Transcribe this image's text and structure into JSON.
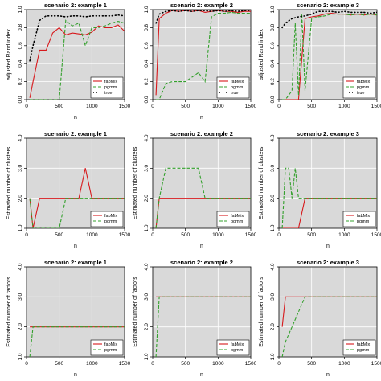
{
  "chart_data": [
    {
      "type": "line",
      "title": "scenario 2: example 1",
      "xlabel": "n",
      "ylabel": "adjusted Rand index",
      "xlim": [
        0,
        1500
      ],
      "ylim": [
        0,
        1
      ],
      "xticks": [
        "0",
        "500",
        "1000",
        "1500"
      ],
      "yticks": [
        "0.0",
        "0.2",
        "0.4",
        "0.6",
        "0.8",
        "1.0"
      ],
      "legend_position": "bottom-right",
      "grid": true,
      "background": "#d9d9d9",
      "series": [
        {
          "name": "fabMix",
          "color": "#d7191c",
          "dash": "solid",
          "x": [
            50,
            100,
            200,
            300,
            400,
            500,
            600,
            700,
            800,
            900,
            1000,
            1100,
            1200,
            1300,
            1400,
            1500
          ],
          "y": [
            0.02,
            0.2,
            0.55,
            0.55,
            0.74,
            0.8,
            0.72,
            0.74,
            0.73,
            0.72,
            0.75,
            0.82,
            0.8,
            0.8,
            0.83,
            0.76
          ]
        },
        {
          "name": "pgmm",
          "color": "#33a02c",
          "dash": "dashed",
          "x": [
            50,
            100,
            200,
            300,
            400,
            500,
            600,
            700,
            800,
            900,
            1000,
            1100,
            1200,
            1300,
            1400,
            1500
          ],
          "y": [
            0,
            0,
            0,
            0,
            0,
            0,
            0.88,
            0.82,
            0.85,
            0.6,
            0.8,
            0.8,
            0.82,
            0.85,
            0.87,
            0.85
          ]
        },
        {
          "name": "true",
          "color": "#000000",
          "dash": "dotted",
          "x": [
            50,
            100,
            200,
            300,
            400,
            500,
            600,
            700,
            800,
            900,
            1000,
            1100,
            1200,
            1300,
            1400,
            1500
          ],
          "y": [
            0.43,
            0.6,
            0.88,
            0.93,
            0.93,
            0.93,
            0.92,
            0.93,
            0.93,
            0.92,
            0.93,
            0.93,
            0.93,
            0.93,
            0.94,
            0.93
          ]
        }
      ]
    },
    {
      "type": "line",
      "title": "scenario 2: example 2",
      "xlabel": "n",
      "ylabel": "",
      "xlim": [
        0,
        1500
      ],
      "ylim": [
        0,
        1
      ],
      "xticks": [
        "0",
        "500",
        "1000",
        "1500"
      ],
      "yticks": [
        "0.0",
        "0.2",
        "0.4",
        "0.6",
        "0.8",
        "1.0"
      ],
      "legend_position": "bottom-right",
      "grid": true,
      "background": "#d9d9d9",
      "series": [
        {
          "name": "fabMix",
          "color": "#d7191c",
          "dash": "solid",
          "x": [
            50,
            100,
            200,
            300,
            400,
            500,
            600,
            700,
            800,
            900,
            1000,
            1100,
            1200,
            1300,
            1400,
            1500
          ],
          "y": [
            0.05,
            0.9,
            0.96,
            0.99,
            0.98,
            0.99,
            0.98,
            0.99,
            0.97,
            0.98,
            0.99,
            0.98,
            0.98,
            0.97,
            0.98,
            0.98
          ]
        },
        {
          "name": "pgmm",
          "color": "#33a02c",
          "dash": "dashed",
          "x": [
            50,
            100,
            200,
            300,
            400,
            500,
            600,
            700,
            800,
            900,
            1000,
            1100,
            1200,
            1300,
            1400,
            1500
          ],
          "y": [
            0,
            0,
            0.18,
            0.2,
            0.2,
            0.2,
            0.25,
            0.3,
            0.2,
            0.92,
            0.96,
            0.96,
            0.97,
            0.96,
            0.96,
            0.96
          ]
        },
        {
          "name": "true",
          "color": "#000000",
          "dash": "dotted",
          "x": [
            50,
            100,
            200,
            300,
            400,
            500,
            600,
            700,
            800,
            900,
            1000,
            1100,
            1200,
            1300,
            1400,
            1500
          ],
          "y": [
            0.85,
            0.95,
            0.98,
            0.99,
            0.98,
            0.99,
            0.98,
            0.99,
            0.99,
            0.98,
            0.99,
            0.98,
            0.99,
            0.98,
            0.99,
            0.99
          ]
        }
      ]
    },
    {
      "type": "line",
      "title": "scenario 2: example 3",
      "xlabel": "",
      "ylabel": "adjusted Rand index",
      "xlim": [
        0,
        1500
      ],
      "ylim": [
        0,
        1
      ],
      "xticks": [
        "0",
        "500",
        "1000",
        "1500"
      ],
      "yticks": [
        "0.0",
        "0.2",
        "0.4",
        "0.6",
        "0.8",
        "1.0"
      ],
      "legend_position": "bottom-right",
      "grid": true,
      "background": "#d9d9d9",
      "series": [
        {
          "name": "fabMix",
          "color": "#d7191c",
          "dash": "solid",
          "x": [
            50,
            100,
            200,
            300,
            400,
            500,
            600,
            700,
            800,
            900,
            1000,
            1100,
            1200,
            1300,
            1400,
            1500
          ],
          "y": [
            0,
            0,
            0,
            0,
            0.9,
            0.92,
            0.93,
            0.95,
            0.96,
            0.95,
            0.95,
            0.94,
            0.95,
            0.94,
            0.95,
            0.94
          ]
        },
        {
          "name": "pgmm",
          "color": "#33a02c",
          "dash": "dashed",
          "x": [
            50,
            100,
            200,
            250,
            300,
            350,
            400,
            500,
            600,
            700,
            800,
            900,
            1000,
            1100,
            1200,
            1300,
            1400,
            1500
          ],
          "y": [
            0,
            0,
            0.1,
            0.85,
            0.05,
            0.95,
            0.1,
            0.9,
            0.92,
            0.93,
            0.95,
            0.95,
            0.95,
            0.94,
            0.95,
            0.94,
            0.95,
            0.94
          ]
        },
        {
          "name": "true",
          "color": "#000000",
          "dash": "dotted",
          "x": [
            50,
            100,
            200,
            300,
            400,
            500,
            600,
            700,
            800,
            900,
            1000,
            1100,
            1200,
            1300,
            1400,
            1500
          ],
          "y": [
            0.8,
            0.85,
            0.9,
            0.92,
            0.93,
            0.95,
            0.98,
            0.98,
            0.98,
            0.97,
            0.98,
            0.97,
            0.97,
            0.97,
            0.96,
            0.97
          ]
        }
      ]
    },
    {
      "type": "line",
      "title": "scenario 2: example 1",
      "xlabel": "n",
      "ylabel": "Estimated number of clusters",
      "xlim": [
        0,
        1500
      ],
      "ylim": [
        1,
        4
      ],
      "xticks": [
        "0",
        "500",
        "1000",
        "1500"
      ],
      "yticks": [
        "1.0",
        "2.0",
        "3.0",
        "4.0"
      ],
      "legend_position": "bottom-right",
      "grid": true,
      "background": "#d9d9d9",
      "series": [
        {
          "name": "fabMix",
          "color": "#d7191c",
          "dash": "solid",
          "x": [
            50,
            100,
            200,
            300,
            400,
            500,
            600,
            700,
            800,
            900,
            1000,
            1100,
            1200,
            1300,
            1400,
            1500
          ],
          "y": [
            2,
            1,
            2,
            2,
            2,
            2,
            2,
            2,
            2,
            3,
            2,
            2,
            2,
            2,
            2,
            2
          ]
        },
        {
          "name": "pgmm",
          "color": "#33a02c",
          "dash": "dashed",
          "x": [
            50,
            100,
            200,
            300,
            400,
            500,
            600,
            700,
            800,
            900,
            1000,
            1100,
            1200,
            1300,
            1400,
            1500
          ],
          "y": [
            2,
            1,
            1,
            1,
            1,
            1,
            2,
            2,
            2,
            2,
            2,
            2,
            2,
            2,
            2,
            2
          ]
        }
      ]
    },
    {
      "type": "line",
      "title": "scenario 2: example 2",
      "xlabel": "n",
      "ylabel": "Estimated number of clusters",
      "xlim": [
        0,
        1500
      ],
      "ylim": [
        1,
        4
      ],
      "xticks": [
        "0",
        "500",
        "1000",
        "1500"
      ],
      "yticks": [
        "1.0",
        "2.0",
        "3.0",
        "4.0"
      ],
      "legend_position": "bottom-right",
      "grid": true,
      "background": "#d9d9d9",
      "series": [
        {
          "name": "fabMix",
          "color": "#d7191c",
          "dash": "solid",
          "x": [
            50,
            100,
            200,
            300,
            400,
            500,
            600,
            700,
            800,
            900,
            1000,
            1100,
            1200,
            1300,
            1400,
            1500
          ],
          "y": [
            1,
            2,
            2,
            2,
            2,
            2,
            2,
            2,
            2,
            2,
            2,
            2,
            2,
            2,
            2,
            2
          ]
        },
        {
          "name": "pgmm",
          "color": "#33a02c",
          "dash": "dashed",
          "x": [
            50,
            100,
            200,
            300,
            400,
            500,
            600,
            700,
            800,
            900,
            1000,
            1100,
            1200,
            1300,
            1400,
            1500
          ],
          "y": [
            1,
            2,
            3,
            3,
            3,
            3,
            3,
            3,
            2,
            2,
            2,
            2,
            2,
            2,
            2,
            2
          ]
        }
      ]
    },
    {
      "type": "line",
      "title": "scenario 2: example 3",
      "xlabel": "n",
      "ylabel": "Estimated number of clusters",
      "xlim": [
        0,
        1500
      ],
      "ylim": [
        1,
        4
      ],
      "xticks": [
        "0",
        "500",
        "1000",
        "1500"
      ],
      "yticks": [
        "1.0",
        "2.0",
        "3.0",
        "4.0"
      ],
      "legend_position": "bottom-right",
      "grid": true,
      "background": "#d9d9d9",
      "series": [
        {
          "name": "fabMix",
          "color": "#d7191c",
          "dash": "solid",
          "x": [
            50,
            100,
            200,
            300,
            400,
            500,
            600,
            700,
            800,
            900,
            1000,
            1100,
            1200,
            1300,
            1400,
            1500
          ],
          "y": [
            1,
            1,
            1,
            1,
            2,
            2,
            2,
            2,
            2,
            2,
            2,
            2,
            2,
            2,
            2,
            2
          ]
        },
        {
          "name": "pgmm",
          "color": "#33a02c",
          "dash": "dashed",
          "x": [
            50,
            100,
            150,
            200,
            250,
            300,
            350,
            400,
            500,
            600,
            700,
            800,
            900,
            1000,
            1100,
            1200,
            1300,
            1400,
            1500
          ],
          "y": [
            1,
            3,
            3,
            2,
            3,
            2,
            2,
            2,
            2,
            2,
            2,
            2,
            2,
            2,
            2,
            2,
            2,
            2,
            2
          ]
        }
      ]
    },
    {
      "type": "line",
      "title": "scenario 2: example 1",
      "xlabel": "n",
      "ylabel": "Estimated number of factors",
      "xlim": [
        0,
        1500
      ],
      "ylim": [
        1,
        4
      ],
      "xticks": [
        "0",
        "500",
        "1000",
        "1500"
      ],
      "yticks": [
        "1.0",
        "2.0",
        "3.0",
        "4.0"
      ],
      "legend_position": "bottom-right",
      "grid": true,
      "background": "#d9d9d9",
      "series": [
        {
          "name": "fabMix",
          "color": "#d7191c",
          "dash": "solid",
          "x": [
            50,
            100,
            200,
            300,
            400,
            500,
            600,
            700,
            800,
            900,
            1000,
            1100,
            1200,
            1300,
            1400,
            1500
          ],
          "y": [
            2,
            2,
            2,
            2,
            2,
            2,
            2,
            2,
            2,
            2,
            2,
            2,
            2,
            2,
            2,
            2
          ]
        },
        {
          "name": "pgmm",
          "color": "#33a02c",
          "dash": "dashed",
          "x": [
            50,
            100,
            200,
            300,
            400,
            500,
            600,
            700,
            800,
            900,
            1000,
            1100,
            1200,
            1300,
            1400,
            1500
          ],
          "y": [
            1,
            2,
            2,
            2,
            2,
            2,
            2,
            2,
            2,
            2,
            2,
            2,
            2,
            2,
            2,
            2
          ]
        }
      ]
    },
    {
      "type": "line",
      "title": "scenario 2: example 2",
      "xlabel": "n",
      "ylabel": "Estimated number of factors",
      "xlim": [
        0,
        1500
      ],
      "ylim": [
        1,
        4
      ],
      "xticks": [
        "0",
        "500",
        "1000",
        "1500"
      ],
      "yticks": [
        "1.0",
        "2.0",
        "3.0",
        "4.0"
      ],
      "legend_position": "bottom-right",
      "grid": true,
      "background": "#d9d9d9",
      "series": [
        {
          "name": "fabMix",
          "color": "#d7191c",
          "dash": "solid",
          "x": [
            50,
            100,
            200,
            300,
            400,
            500,
            600,
            700,
            800,
            900,
            1000,
            1100,
            1200,
            1300,
            1400,
            1500
          ],
          "y": [
            3,
            3,
            3,
            3,
            3,
            3,
            3,
            3,
            3,
            3,
            3,
            3,
            3,
            3,
            3,
            3
          ]
        },
        {
          "name": "pgmm",
          "color": "#33a02c",
          "dash": "dashed",
          "x": [
            50,
            100,
            200,
            300,
            400,
            500,
            600,
            700,
            800,
            900,
            1000,
            1100,
            1200,
            1300,
            1400,
            1500
          ],
          "y": [
            1,
            3,
            3,
            3,
            3,
            3,
            3,
            3,
            3,
            3,
            3,
            3,
            3,
            3,
            3,
            3
          ]
        }
      ]
    },
    {
      "type": "line",
      "title": "scenario 2: example 3",
      "xlabel": "n",
      "ylabel": "Estimated number of factors",
      "xlim": [
        0,
        1500
      ],
      "ylim": [
        1,
        4
      ],
      "xticks": [
        "0",
        "500",
        "1000",
        "1500"
      ],
      "yticks": [
        "1.0",
        "2.0",
        "3.0",
        "4.0"
      ],
      "legend_position": "bottom-right",
      "grid": true,
      "background": "#d9d9d9",
      "series": [
        {
          "name": "fabMix",
          "color": "#d7191c",
          "dash": "solid",
          "x": [
            50,
            100,
            200,
            300,
            400,
            500,
            600,
            700,
            800,
            900,
            1000,
            1100,
            1200,
            1300,
            1400,
            1500
          ],
          "y": [
            2,
            3,
            3,
            3,
            3,
            3,
            3,
            3,
            3,
            3,
            3,
            3,
            3,
            3,
            3,
            3
          ]
        },
        {
          "name": "pgmm",
          "color": "#33a02c",
          "dash": "dashed",
          "x": [
            50,
            100,
            200,
            300,
            400,
            500,
            600,
            700,
            800,
            900,
            1000,
            1100,
            1200,
            1300,
            1400,
            1500
          ],
          "y": [
            1,
            1.5,
            2,
            2.5,
            3,
            3,
            3,
            3,
            3,
            3,
            3,
            3,
            3,
            3,
            3,
            3
          ]
        }
      ]
    }
  ]
}
